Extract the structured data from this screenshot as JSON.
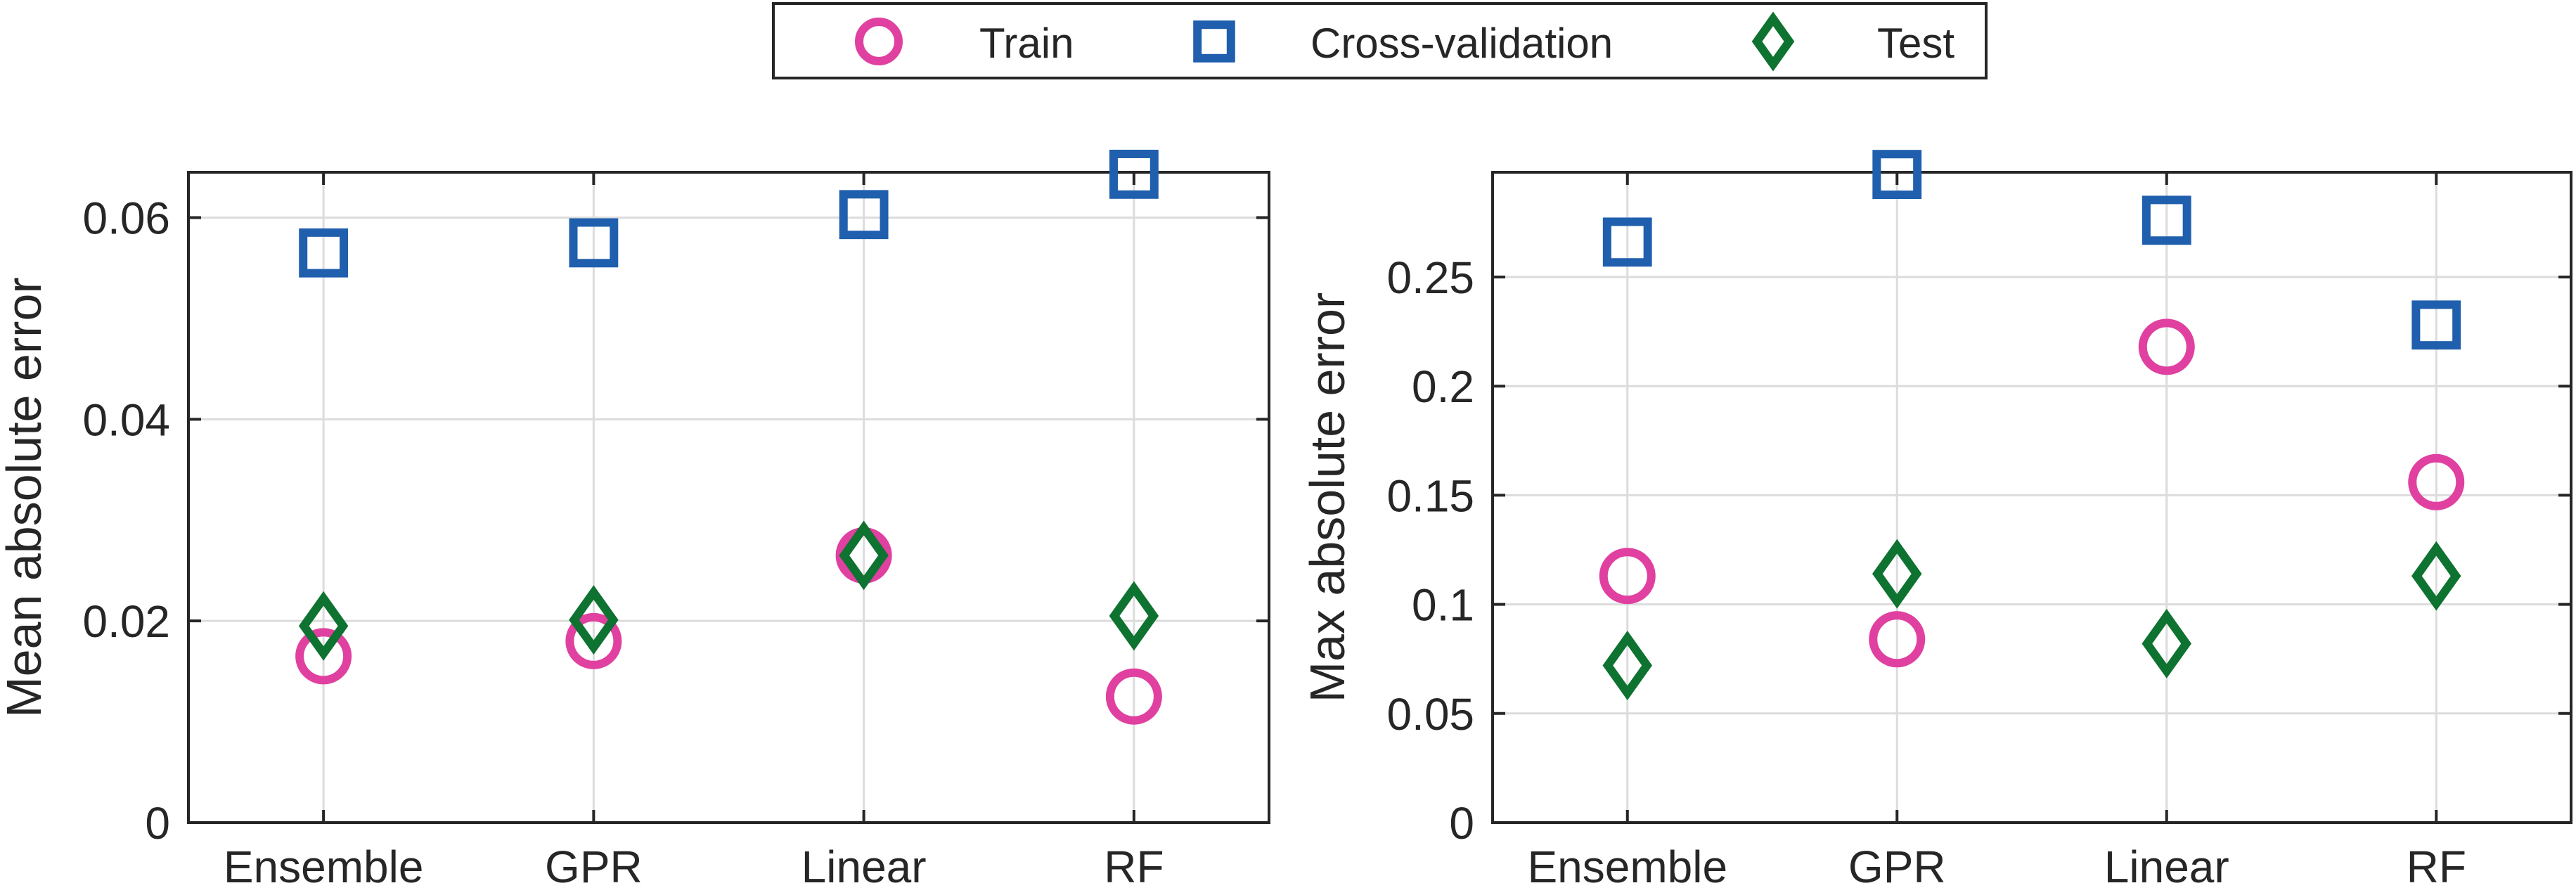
{
  "legend": {
    "items": [
      {
        "label": "Train",
        "marker": "circle",
        "color": "#E040A0"
      },
      {
        "label": "Cross-validation",
        "marker": "square",
        "color": "#1F5FAD"
      },
      {
        "label": "Test",
        "marker": "diamond",
        "color": "#0E7230"
      }
    ]
  },
  "chart_data": [
    {
      "type": "scatter",
      "categories": [
        "Ensemble",
        "GPR",
        "Linear",
        "RF"
      ],
      "ylabel": "Mean absolute error",
      "ylim": [
        0,
        0.0645
      ],
      "yticks": [
        0,
        0.02,
        0.04,
        0.06
      ],
      "ytick_labels": [
        "0",
        "0.02",
        "0.04",
        "0.06"
      ],
      "grid": true,
      "series": [
        {
          "name": "Train",
          "marker": "circle",
          "values": [
            0.0165,
            0.018,
            0.0265,
            0.0125
          ]
        },
        {
          "name": "Cross-validation",
          "marker": "square",
          "values": [
            0.0565,
            0.0575,
            0.0603,
            0.0643
          ]
        },
        {
          "name": "Test",
          "marker": "diamond",
          "values": [
            0.0195,
            0.0201,
            0.0265,
            0.0205
          ]
        }
      ]
    },
    {
      "type": "scatter",
      "categories": [
        "Ensemble",
        "GPR",
        "Linear",
        "RF"
      ],
      "ylabel": "Max absolute error",
      "ylim": [
        0,
        0.298
      ],
      "yticks": [
        0,
        0.05,
        0.1,
        0.15,
        0.2,
        0.25
      ],
      "ytick_labels": [
        "0",
        "0.05",
        "0.1",
        "0.15",
        "0.2",
        "0.25"
      ],
      "grid": true,
      "series": [
        {
          "name": "Train",
          "marker": "circle",
          "values": [
            0.113,
            0.084,
            0.218,
            0.156
          ]
        },
        {
          "name": "Cross-validation",
          "marker": "square",
          "values": [
            0.266,
            0.297,
            0.276,
            0.228
          ]
        },
        {
          "name": "Test",
          "marker": "diamond",
          "values": [
            0.072,
            0.114,
            0.082,
            0.113
          ]
        }
      ]
    }
  ]
}
